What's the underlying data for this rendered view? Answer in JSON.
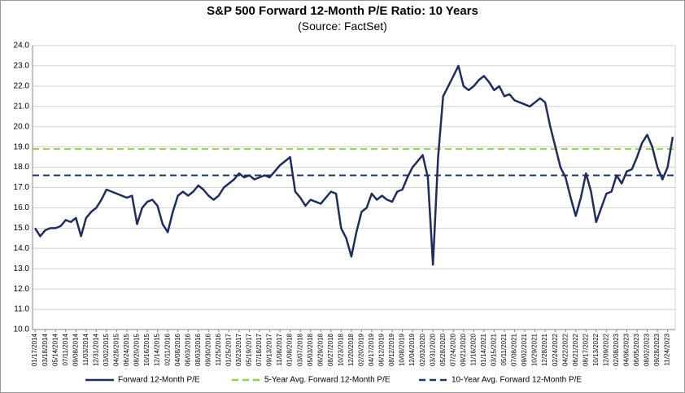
{
  "chart_data": {
    "type": "line",
    "title": "S&P 500 Forward 12-Month P/E Ratio: 10 Years",
    "subtitle": "(Source: FactSet)",
    "categories": [
      "01/17/2014",
      null,
      "03/18/2014",
      null,
      "05/14/2014",
      null,
      "07/11/2014",
      null,
      "09/08/2014",
      null,
      "11/03/2014",
      null,
      "12/31/2014",
      null,
      "03/02/2015",
      null,
      "04/28/2015",
      null,
      "06/24/2015",
      null,
      "08/20/2015",
      null,
      "10/16/2015",
      null,
      "12/14/2015",
      null,
      "02/11/2016",
      null,
      "04/08/2016",
      null,
      "06/03/2016",
      null,
      "08/03/2016",
      null,
      "09/30/2016",
      null,
      "11/25/2016",
      null,
      "01/25/2017",
      null,
      "03/23/2017",
      null,
      "05/19/2017",
      null,
      "07/18/2017",
      null,
      "09/13/2017",
      null,
      "11/08/2017",
      null,
      "01/08/2018",
      null,
      "03/07/2018",
      null,
      "05/03/2018",
      null,
      "06/29/2018",
      null,
      "08/27/2018",
      null,
      "10/23/2018",
      null,
      "12/20/2018",
      null,
      "02/20/2019",
      null,
      "04/17/2019",
      null,
      "06/12/2019",
      null,
      "08/12/2019",
      null,
      "10/08/2019",
      null,
      "12/04/2019",
      null,
      "02/03/2020",
      null,
      "03/31/2020",
      null,
      "05/28/2020",
      null,
      "07/24/2020",
      null,
      "09/21/2020",
      null,
      "11/16/2020",
      null,
      "01/14/2021",
      null,
      "03/15/2021",
      null,
      "05/11/2021",
      null,
      "07/08/2021",
      null,
      "09/02/2021",
      null,
      "10/29/2021",
      null,
      "12/28/2021",
      null,
      "02/24/2022",
      null,
      "04/22/2022",
      null,
      "06/21/2022",
      null,
      "08/17/2022",
      null,
      "10/13/2022",
      null,
      "12/09/2022",
      null,
      "02/08/2023",
      null,
      "04/06/2023",
      null,
      "06/05/2023",
      null,
      "08/02/2023",
      null,
      "09/28/2023",
      null,
      "11/24/2023",
      null
    ],
    "series": [
      {
        "name": "Forward 12-Month P/E",
        "color": "#1f2d5c",
        "values": [
          15.0,
          14.6,
          14.9,
          15.0,
          15.0,
          15.1,
          15.4,
          15.3,
          15.5,
          14.6,
          15.5,
          15.8,
          16.0,
          16.4,
          16.9,
          16.8,
          16.7,
          16.6,
          16.5,
          16.6,
          15.2,
          16.0,
          16.3,
          16.4,
          16.1,
          15.2,
          14.8,
          15.8,
          16.6,
          16.8,
          16.6,
          16.8,
          17.1,
          16.9,
          16.6,
          16.4,
          16.6,
          17.0,
          17.2,
          17.4,
          17.7,
          17.5,
          17.6,
          17.4,
          17.5,
          17.6,
          17.5,
          17.8,
          18.1,
          18.3,
          18.5,
          16.8,
          16.5,
          16.1,
          16.4,
          16.3,
          16.2,
          16.5,
          16.8,
          16.7,
          15.0,
          14.5,
          13.6,
          14.8,
          15.8,
          16.0,
          16.7,
          16.4,
          16.6,
          16.4,
          16.3,
          16.8,
          16.9,
          17.5,
          18.0,
          18.3,
          18.6,
          17.5,
          13.2,
          18.5,
          21.5,
          22.0,
          22.5,
          23.0,
          22.0,
          21.8,
          22.0,
          22.3,
          22.5,
          22.2,
          21.8,
          22.0,
          21.5,
          21.6,
          21.3,
          21.2,
          21.1,
          21.0,
          21.2,
          21.4,
          21.2,
          20.0,
          19.0,
          18.0,
          17.5,
          16.5,
          15.6,
          16.5,
          17.7,
          16.8,
          15.3,
          16.0,
          16.7,
          16.8,
          17.6,
          17.2,
          17.8,
          17.9,
          18.5,
          19.2,
          19.6,
          19.0,
          18.0,
          17.4,
          18.0,
          19.5
        ]
      }
    ],
    "reference_lines": [
      {
        "name": "5-Year Avg. Forward 12-Month P/E",
        "value": 18.9,
        "color": "#92d050"
      },
      {
        "name": "10-Year Avg. Forward 12-Month P/E",
        "value": 17.6,
        "color": "#1f3864"
      }
    ],
    "ylim": [
      10,
      24
    ],
    "yticks": [
      {
        "value": 10,
        "label": "10.0"
      },
      {
        "value": 11,
        "label": "11.0"
      },
      {
        "value": 12,
        "label": "12.0"
      },
      {
        "value": 13,
        "label": "13.0"
      },
      {
        "value": 14,
        "label": "14.0"
      },
      {
        "value": 15,
        "label": "15.0"
      },
      {
        "value": 16,
        "label": "16.0"
      },
      {
        "value": 17,
        "label": "17.0"
      },
      {
        "value": 18,
        "label": "18.0"
      },
      {
        "value": 19,
        "label": "19.0"
      },
      {
        "value": 20,
        "label": "20.0"
      },
      {
        "value": 21,
        "label": "21.0"
      },
      {
        "value": 22,
        "label": "22.0"
      },
      {
        "value": 23,
        "label": "23.0"
      },
      {
        "value": 24,
        "label": "24.0"
      }
    ],
    "grid": true
  }
}
